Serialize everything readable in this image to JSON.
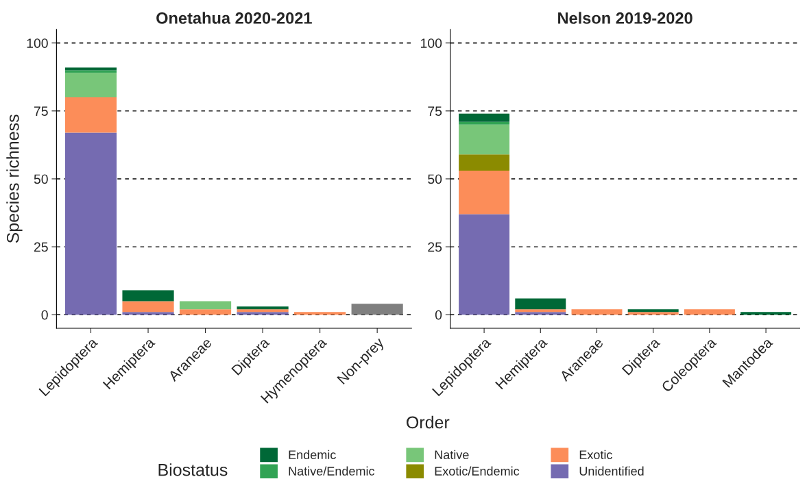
{
  "chart_data": [
    {
      "type": "bar",
      "title": "Onetahua 2020-2021",
      "xlabel": "Order",
      "ylabel": "Species richness",
      "stacked": true,
      "grid": "y",
      "categories": [
        "Lepidoptera",
        "Hemiptera",
        "Araneae",
        "Diptera",
        "Hymenoptera",
        "Non-prey"
      ],
      "ylim": [
        -5,
        105
      ],
      "yticks": [
        0,
        25,
        50,
        75,
        100
      ],
      "series": [
        {
          "color": "#7f7f7f",
          "values": [
            0,
            0,
            0,
            0,
            0,
            4
          ]
        },
        {
          "color": "#756bb1",
          "values": [
            67,
            1,
            0,
            1,
            0,
            0
          ]
        },
        {
          "color": "#fc8d59",
          "values": [
            13,
            4,
            2,
            1,
            1,
            0
          ]
        },
        {
          "color": "#78c679",
          "values": [
            9,
            0,
            3,
            0,
            0,
            0
          ]
        },
        {
          "color": "#31a354",
          "values": [
            1,
            0,
            0,
            0,
            0,
            0
          ]
        },
        {
          "color": "#006837",
          "values": [
            1,
            4,
            0,
            1,
            0,
            0
          ]
        }
      ]
    },
    {
      "type": "bar",
      "title": "Nelson 2019-2020",
      "legend_title": "Biostatus",
      "legend": "bottom",
      "stacked": true,
      "grid": "y",
      "categories": [
        "Lepidoptera",
        "Hemiptera",
        "Araneae",
        "Diptera",
        "Coleoptera",
        "Mantodea"
      ],
      "ylim": [
        -5,
        105
      ],
      "yticks": [
        0,
        25,
        50,
        75,
        100
      ],
      "series": [
        {
          "name": "Unidentified",
          "color": "#756bb1",
          "values": [
            37,
            1,
            0,
            0,
            0,
            0
          ]
        },
        {
          "name": "Exotic",
          "color": "#fc8d59",
          "values": [
            16,
            1,
            2,
            1,
            2,
            0
          ]
        },
        {
          "name": "Exotic/Endemic",
          "color": "#8b8b00",
          "values": [
            6,
            0,
            0,
            0,
            0,
            0
          ]
        },
        {
          "name": "Native",
          "color": "#78c679",
          "values": [
            11,
            0,
            0,
            0,
            0,
            0
          ]
        },
        {
          "name": "Native/Endemic",
          "color": "#31a354",
          "values": [
            1,
            0,
            0,
            0,
            0,
            0
          ]
        },
        {
          "name": "Endemic",
          "color": "#006837",
          "values": [
            3,
            4,
            0,
            1,
            0,
            1
          ]
        }
      ]
    }
  ]
}
